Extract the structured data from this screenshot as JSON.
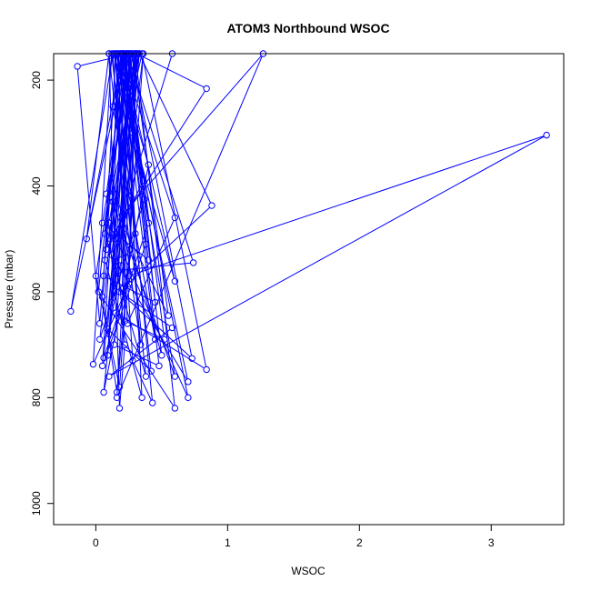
{
  "chart_data": {
    "type": "line",
    "title": "ATOM3 Northbound WSOC",
    "xlabel": "WSOC",
    "ylabel": "Pressure (mbar)",
    "xlim": [
      -0.32,
      3.55
    ],
    "ylim": [
      1040,
      150
    ],
    "y_reversed": true,
    "grid": false,
    "legend": "none",
    "x_ticks": [
      0,
      1,
      2,
      3
    ],
    "x_tick_labels": [
      "0",
      "1",
      "2",
      "3"
    ],
    "y_ticks": [
      200,
      400,
      600,
      800,
      1000
    ],
    "y_tick_labels": [
      "200",
      "400",
      "600",
      "800",
      "1000"
    ],
    "series_color": "#0000ff",
    "series": [
      {
        "values": [
          [
            0.1,
            150
          ],
          [
            0.18,
            820
          ],
          [
            0.22,
            700
          ],
          [
            0.13,
            430
          ],
          [
            0.3,
            150
          ],
          [
            0.05,
            610
          ],
          [
            0.16,
            790
          ],
          [
            0.26,
            520
          ],
          [
            0.1,
            150
          ],
          [
            -0.07,
            500
          ],
          [
            0.2,
            150
          ],
          [
            0.4,
            470
          ],
          [
            0.06,
            725
          ],
          [
            0.27,
            150
          ],
          [
            0.0,
            570
          ],
          [
            0.18,
            780
          ],
          [
            0.36,
            150
          ],
          [
            0.14,
            600
          ],
          [
            0.08,
            415
          ],
          [
            0.23,
            150
          ],
          [
            -0.19,
            637
          ],
          [
            0.13,
            150
          ],
          [
            0.28,
            730
          ],
          [
            0.43,
            810
          ],
          [
            0.17,
            150
          ],
          [
            0.11,
            500
          ],
          [
            0.84,
            216
          ],
          [
            0.31,
            150
          ],
          [
            0.06,
            790
          ],
          [
            0.4,
            360
          ],
          [
            0.15,
            150
          ],
          [
            0.24,
            660
          ],
          [
            0.6,
            460
          ],
          [
            0.19,
            150
          ],
          [
            0.07,
            540
          ],
          [
            0.35,
            800
          ],
          [
            0.22,
            150
          ],
          [
            0.5,
            720
          ],
          [
            0.12,
            385
          ],
          [
            0.25,
            150
          ],
          [
            0.2,
            595
          ],
          [
            0.88,
            437
          ],
          [
            0.33,
            150
          ],
          [
            0.1,
            470
          ],
          [
            0.7,
            800
          ],
          [
            0.18,
            150
          ],
          [
            0.45,
            690
          ],
          [
            0.13,
            250
          ],
          [
            0.21,
            150
          ],
          [
            0.02,
            600
          ],
          [
            0.6,
            820
          ],
          [
            0.3,
            150
          ],
          [
            0.17,
            560
          ],
          [
            0.74,
            545
          ],
          [
            0.24,
            150
          ],
          [
            0.09,
            670
          ],
          [
            0.42,
            750
          ],
          [
            0.14,
            150
          ],
          [
            0.28,
            300
          ],
          [
            0.6,
            580
          ],
          [
            0.2,
            150
          ],
          [
            0.05,
            740
          ],
          [
            0.38,
            510
          ],
          [
            0.26,
            150
          ],
          [
            0.15,
            640
          ],
          [
            0.84,
            747
          ],
          [
            0.35,
            150
          ],
          [
            0.11,
            420
          ],
          [
            0.6,
            760
          ],
          [
            0.19,
            150
          ],
          [
            0.22,
            480
          ],
          [
            0.55,
            645
          ],
          [
            0.28,
            150
          ],
          [
            0.03,
            690
          ],
          [
            0.37,
            425
          ],
          [
            0.16,
            150
          ],
          [
            0.7,
            770
          ],
          [
            0.12,
            530
          ],
          [
            0.3,
            150
          ],
          [
            0.25,
            570
          ],
          [
            3.42,
            304
          ],
          [
            0.1,
            760
          ],
          [
            0.58,
            668
          ],
          [
            0.18,
            600
          ],
          [
            0.73,
            726
          ],
          [
            0.27,
            150
          ],
          [
            0.05,
            470
          ],
          [
            0.4,
            540
          ],
          [
            0.21,
            150
          ],
          [
            0.48,
            740
          ],
          [
            0.14,
            700
          ],
          [
            0.33,
            150
          ],
          [
            0.08,
            520
          ],
          [
            0.28,
            425
          ],
          [
            0.17,
            150
          ],
          [
            0.22,
            655
          ],
          [
            0.52,
            690
          ],
          [
            0.24,
            150
          ],
          [
            0.07,
            490
          ],
          [
            0.38,
            760
          ],
          [
            0.12,
            150
          ],
          [
            -0.02,
            737
          ],
          [
            0.25,
            585
          ],
          [
            0.31,
            150
          ],
          [
            0.16,
            800
          ],
          [
            1.27,
            150
          ],
          [
            0.2,
            455
          ],
          [
            0.34,
            700
          ],
          [
            0.15,
            150
          ],
          [
            0.06,
            570
          ],
          [
            0.45,
            620
          ],
          [
            0.25,
            150
          ],
          [
            0.19,
            540
          ],
          [
            0.1,
            680
          ],
          [
            0.32,
            150
          ],
          [
            0.58,
            150
          ],
          [
            0.15,
            500
          ],
          [
            0.36,
            390
          ],
          [
            0.21,
            150
          ],
          [
            0.12,
            620
          ],
          [
            0.26,
            150
          ],
          [
            -0.14,
            174
          ],
          [
            0.03,
            660
          ],
          [
            0.19,
            150
          ],
          [
            0.3,
            490
          ],
          [
            0.23,
            150
          ],
          [
            0.09,
            720
          ],
          [
            0.29,
            150
          ]
        ]
      }
    ]
  }
}
